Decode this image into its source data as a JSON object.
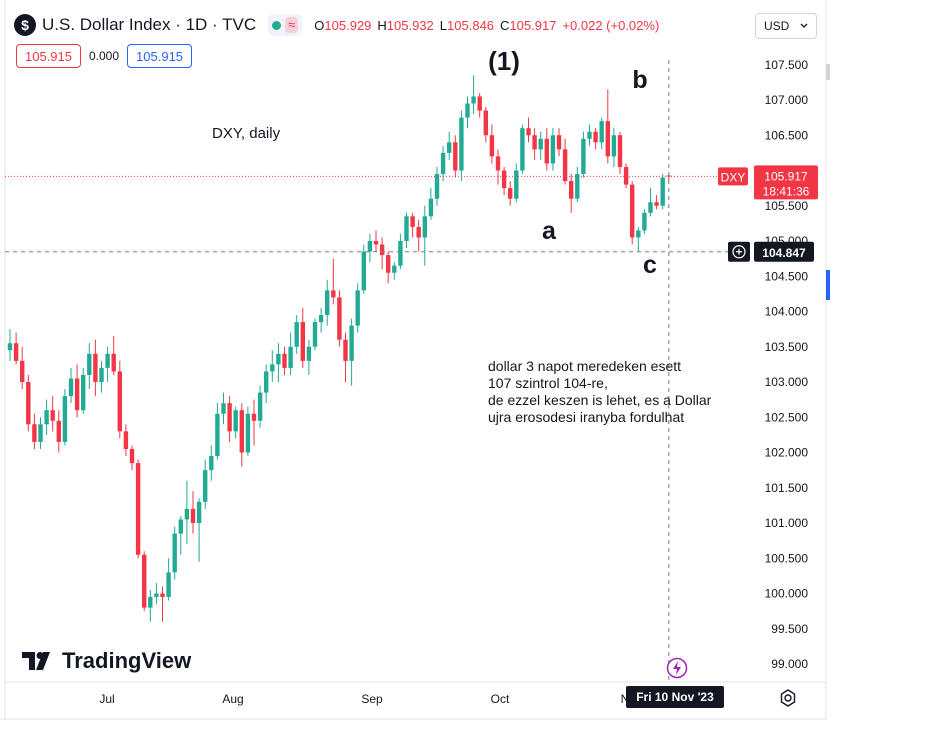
{
  "header": {
    "symbol_logo": "$",
    "title": "U.S. Dollar Index · 1D · TVC",
    "pill_icon": "wave-icon",
    "ohlc": {
      "o_label": "O",
      "o": "105.929",
      "h_label": "H",
      "h": "105.932",
      "l_label": "L",
      "l": "105.846",
      "c_label": "C",
      "c": "105.917",
      "change": "+0.022 (+0.02%)"
    },
    "sell_price": "105.915",
    "spread": "0.000",
    "buy_price": "105.915",
    "currency": "USD",
    "currency_chevron": "chevron-down-icon"
  },
  "chart_data": {
    "type": "candlestick",
    "symbol": "DXY",
    "timeframe": "1D",
    "x": {
      "tick_labels": [
        "Jul",
        "Aug",
        "Sep",
        "Oct",
        "N",
        "Fri 10 Nov '23"
      ]
    },
    "y": {
      "ylim": [
        98.8,
        107.8
      ],
      "tick_labels": [
        "107.500",
        "107.000",
        "106.500",
        "106.000",
        "105.500",
        "105.000",
        "104.500",
        "104.000",
        "103.500",
        "103.000",
        "102.500",
        "102.000",
        "101.500",
        "101.000",
        "100.500",
        "100.000",
        "99.500",
        "99.000"
      ]
    },
    "candles": [
      {
        "o": 103.45,
        "h": 103.75,
        "l": 103.3,
        "c": 103.55
      },
      {
        "o": 103.55,
        "h": 103.7,
        "l": 103.25,
        "c": 103.3
      },
      {
        "o": 103.3,
        "h": 103.5,
        "l": 102.9,
        "c": 103.0
      },
      {
        "o": 103.0,
        "h": 103.1,
        "l": 102.3,
        "c": 102.4
      },
      {
        "o": 102.4,
        "h": 102.55,
        "l": 102.05,
        "c": 102.15
      },
      {
        "o": 102.15,
        "h": 102.5,
        "l": 102.05,
        "c": 102.4
      },
      {
        "o": 102.4,
        "h": 102.75,
        "l": 102.25,
        "c": 102.6
      },
      {
        "o": 102.6,
        "h": 102.8,
        "l": 102.3,
        "c": 102.45
      },
      {
        "o": 102.45,
        "h": 102.6,
        "l": 102.0,
        "c": 102.15
      },
      {
        "o": 102.15,
        "h": 102.9,
        "l": 102.1,
        "c": 102.8
      },
      {
        "o": 102.8,
        "h": 103.2,
        "l": 102.7,
        "c": 103.05
      },
      {
        "o": 103.05,
        "h": 103.25,
        "l": 102.5,
        "c": 102.6
      },
      {
        "o": 102.6,
        "h": 103.2,
        "l": 102.55,
        "c": 103.1
      },
      {
        "o": 103.1,
        "h": 103.55,
        "l": 102.9,
        "c": 103.4
      },
      {
        "o": 103.4,
        "h": 103.6,
        "l": 102.8,
        "c": 103.0
      },
      {
        "o": 103.0,
        "h": 103.3,
        "l": 102.85,
        "c": 103.2
      },
      {
        "o": 103.2,
        "h": 103.5,
        "l": 103.0,
        "c": 103.4
      },
      {
        "o": 103.4,
        "h": 103.65,
        "l": 103.1,
        "c": 103.15
      },
      {
        "o": 103.15,
        "h": 103.3,
        "l": 102.2,
        "c": 102.3
      },
      {
        "o": 102.3,
        "h": 102.4,
        "l": 101.95,
        "c": 102.05
      },
      {
        "o": 102.05,
        "h": 102.1,
        "l": 101.75,
        "c": 101.85
      },
      {
        "o": 101.85,
        "h": 101.9,
        "l": 100.5,
        "c": 100.55
      },
      {
        "o": 100.55,
        "h": 100.6,
        "l": 99.75,
        "c": 99.8
      },
      {
        "o": 99.8,
        "h": 100.05,
        "l": 99.6,
        "c": 99.95
      },
      {
        "o": 99.95,
        "h": 100.15,
        "l": 99.85,
        "c": 100.0
      },
      {
        "o": 100.0,
        "h": 100.1,
        "l": 99.6,
        "c": 99.95
      },
      {
        "o": 99.95,
        "h": 100.5,
        "l": 99.9,
        "c": 100.3
      },
      {
        "o": 100.3,
        "h": 100.95,
        "l": 100.2,
        "c": 100.85
      },
      {
        "o": 100.85,
        "h": 101.1,
        "l": 100.55,
        "c": 101.05
      },
      {
        "o": 101.05,
        "h": 101.6,
        "l": 100.7,
        "c": 101.2
      },
      {
        "o": 101.2,
        "h": 101.45,
        "l": 100.85,
        "c": 101.0
      },
      {
        "o": 101.0,
        "h": 101.35,
        "l": 100.45,
        "c": 101.3
      },
      {
        "o": 101.3,
        "h": 101.9,
        "l": 101.2,
        "c": 101.75
      },
      {
        "o": 101.75,
        "h": 102.1,
        "l": 101.6,
        "c": 101.95
      },
      {
        "o": 101.95,
        "h": 102.7,
        "l": 101.9,
        "c": 102.55
      },
      {
        "o": 102.55,
        "h": 102.85,
        "l": 102.4,
        "c": 102.7
      },
      {
        "o": 102.7,
        "h": 102.8,
        "l": 102.15,
        "c": 102.3
      },
      {
        "o": 102.3,
        "h": 102.65,
        "l": 102.2,
        "c": 102.6
      },
      {
        "o": 102.6,
        "h": 102.7,
        "l": 101.8,
        "c": 102.0
      },
      {
        "o": 102.0,
        "h": 102.65,
        "l": 101.95,
        "c": 102.55
      },
      {
        "o": 102.55,
        "h": 102.75,
        "l": 102.1,
        "c": 102.45
      },
      {
        "o": 102.45,
        "h": 102.95,
        "l": 102.35,
        "c": 102.85
      },
      {
        "o": 102.85,
        "h": 103.25,
        "l": 102.7,
        "c": 103.15
      },
      {
        "o": 103.15,
        "h": 103.45,
        "l": 103.0,
        "c": 103.25
      },
      {
        "o": 103.25,
        "h": 103.55,
        "l": 103.0,
        "c": 103.4
      },
      {
        "o": 103.4,
        "h": 103.5,
        "l": 103.1,
        "c": 103.2
      },
      {
        "o": 103.2,
        "h": 103.7,
        "l": 103.1,
        "c": 103.5
      },
      {
        "o": 103.5,
        "h": 103.95,
        "l": 103.4,
        "c": 103.85
      },
      {
        "o": 103.85,
        "h": 104.05,
        "l": 103.2,
        "c": 103.3
      },
      {
        "o": 103.3,
        "h": 103.6,
        "l": 103.1,
        "c": 103.5
      },
      {
        "o": 103.5,
        "h": 103.9,
        "l": 103.45,
        "c": 103.85
      },
      {
        "o": 103.85,
        "h": 104.05,
        "l": 103.7,
        "c": 103.95
      },
      {
        "o": 103.95,
        "h": 104.45,
        "l": 103.8,
        "c": 104.3
      },
      {
        "o": 104.3,
        "h": 104.75,
        "l": 104.1,
        "c": 104.2
      },
      {
        "o": 104.2,
        "h": 104.3,
        "l": 103.5,
        "c": 103.6
      },
      {
        "o": 103.6,
        "h": 103.7,
        "l": 103.0,
        "c": 103.3
      },
      {
        "o": 103.3,
        "h": 103.9,
        "l": 102.95,
        "c": 103.8
      },
      {
        "o": 103.8,
        "h": 104.4,
        "l": 103.7,
        "c": 104.3
      },
      {
        "o": 104.3,
        "h": 104.95,
        "l": 104.25,
        "c": 104.85
      },
      {
        "o": 104.85,
        "h": 105.1,
        "l": 104.7,
        "c": 105.0
      },
      {
        "o": 105.0,
        "h": 105.15,
        "l": 104.85,
        "c": 104.95
      },
      {
        "o": 104.95,
        "h": 105.05,
        "l": 104.6,
        "c": 104.8
      },
      {
        "o": 104.8,
        "h": 104.85,
        "l": 104.4,
        "c": 104.55
      },
      {
        "o": 104.55,
        "h": 104.7,
        "l": 104.45,
        "c": 104.65
      },
      {
        "o": 104.65,
        "h": 105.1,
        "l": 104.6,
        "c": 105.0
      },
      {
        "o": 105.0,
        "h": 105.4,
        "l": 104.9,
        "c": 105.35
      },
      {
        "o": 105.35,
        "h": 105.4,
        "l": 105.05,
        "c": 105.2
      },
      {
        "o": 105.2,
        "h": 105.3,
        "l": 104.85,
        "c": 105.05
      },
      {
        "o": 105.05,
        "h": 105.5,
        "l": 104.65,
        "c": 105.35
      },
      {
        "o": 105.35,
        "h": 105.75,
        "l": 105.3,
        "c": 105.6
      },
      {
        "o": 105.6,
        "h": 106.05,
        "l": 105.5,
        "c": 105.95
      },
      {
        "o": 105.95,
        "h": 106.35,
        "l": 105.85,
        "c": 106.25
      },
      {
        "o": 106.25,
        "h": 106.55,
        "l": 106.15,
        "c": 106.4
      },
      {
        "o": 106.4,
        "h": 106.5,
        "l": 105.9,
        "c": 106.0
      },
      {
        "o": 106.0,
        "h": 106.85,
        "l": 105.85,
        "c": 106.75
      },
      {
        "o": 106.75,
        "h": 107.05,
        "l": 106.6,
        "c": 106.95
      },
      {
        "o": 106.95,
        "h": 107.35,
        "l": 106.8,
        "c": 107.05
      },
      {
        "o": 107.05,
        "h": 107.1,
        "l": 106.75,
        "c": 106.85
      },
      {
        "o": 106.85,
        "h": 106.9,
        "l": 106.4,
        "c": 106.5
      },
      {
        "o": 106.5,
        "h": 106.65,
        "l": 106.1,
        "c": 106.2
      },
      {
        "o": 106.2,
        "h": 106.3,
        "l": 105.8,
        "c": 106.0
      },
      {
        "o": 106.0,
        "h": 106.05,
        "l": 105.65,
        "c": 105.75
      },
      {
        "o": 105.75,
        "h": 105.85,
        "l": 105.5,
        "c": 105.6
      },
      {
        "o": 105.6,
        "h": 106.1,
        "l": 105.55,
        "c": 106.0
      },
      {
        "o": 106.0,
        "h": 106.65,
        "l": 105.95,
        "c": 106.6
      },
      {
        "o": 106.6,
        "h": 106.75,
        "l": 106.4,
        "c": 106.5
      },
      {
        "o": 106.5,
        "h": 106.6,
        "l": 106.15,
        "c": 106.3
      },
      {
        "o": 106.3,
        "h": 106.55,
        "l": 106.15,
        "c": 106.45
      },
      {
        "o": 106.45,
        "h": 106.6,
        "l": 106.0,
        "c": 106.1
      },
      {
        "o": 106.1,
        "h": 106.6,
        "l": 106.0,
        "c": 106.5
      },
      {
        "o": 106.5,
        "h": 106.6,
        "l": 106.2,
        "c": 106.3
      },
      {
        "o": 106.3,
        "h": 106.45,
        "l": 105.8,
        "c": 105.85
      },
      {
        "o": 105.85,
        "h": 105.95,
        "l": 105.4,
        "c": 105.6
      },
      {
        "o": 105.6,
        "h": 106.05,
        "l": 105.55,
        "c": 105.95
      },
      {
        "o": 105.95,
        "h": 106.55,
        "l": 105.9,
        "c": 106.45
      },
      {
        "o": 106.45,
        "h": 106.65,
        "l": 106.35,
        "c": 106.55
      },
      {
        "o": 106.55,
        "h": 106.6,
        "l": 106.3,
        "c": 106.4
      },
      {
        "o": 106.4,
        "h": 106.75,
        "l": 106.3,
        "c": 106.7
      },
      {
        "o": 106.7,
        "h": 107.15,
        "l": 106.1,
        "c": 106.2
      },
      {
        "o": 106.2,
        "h": 106.6,
        "l": 106.05,
        "c": 106.5
      },
      {
        "o": 106.5,
        "h": 106.55,
        "l": 105.95,
        "c": 106.05
      },
      {
        "o": 106.05,
        "h": 106.1,
        "l": 105.75,
        "c": 105.8
      },
      {
        "o": 105.8,
        "h": 105.85,
        "l": 104.95,
        "c": 105.05
      },
      {
        "o": 105.05,
        "h": 105.2,
        "l": 104.85,
        "c": 105.15
      },
      {
        "o": 105.15,
        "h": 105.45,
        "l": 105.1,
        "c": 105.4
      },
      {
        "o": 105.4,
        "h": 105.75,
        "l": 105.35,
        "c": 105.55
      },
      {
        "o": 105.55,
        "h": 105.65,
        "l": 105.45,
        "c": 105.5
      },
      {
        "o": 105.5,
        "h": 105.95,
        "l": 105.45,
        "c": 105.9
      },
      {
        "o": 105.93,
        "h": 105.93,
        "l": 105.85,
        "c": 105.92
      }
    ],
    "last_price": 105.917,
    "last_price_label": "105.917",
    "countdown": "18:41:36",
    "symbol_tag": "DXY",
    "crosshair_price": 104.847,
    "crosshair_price_label": "104.847",
    "colors": {
      "up": "#22ab94",
      "down": "#f23645",
      "crosshair": "#131722"
    },
    "annotations": {
      "wave_1": "(1)",
      "wave_a": "a",
      "wave_b": "b",
      "wave_c": "c",
      "chart_note": "DXY, daily",
      "comment_lines": [
        "dollar  3 napot meredeken esett",
        "107 szintrol 104-re,",
        "de ezzel keszen is lehet, es a Dollar",
        "ujra erosodesi iranyba fordulhat"
      ]
    }
  },
  "branding": {
    "logo_text": "TradingView"
  }
}
